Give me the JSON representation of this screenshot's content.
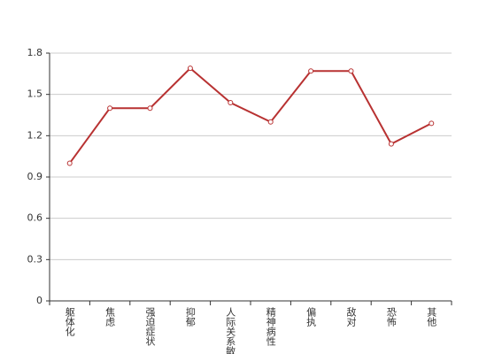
{
  "chart_data": {
    "type": "line",
    "categories": [
      "躯体化",
      "焦虑",
      "强迫症状",
      "抑郁",
      "人际关系敏感",
      "精神病性",
      "偏执",
      "敌对",
      "恐怖",
      "其他"
    ],
    "values": [
      1.0,
      1.4,
      1.4,
      1.69,
      1.44,
      1.3,
      1.67,
      1.67,
      1.14,
      1.29
    ],
    "color": "#b83232",
    "ylim": [
      0,
      1.8
    ],
    "yticks": [
      0,
      0.3,
      0.6,
      0.9,
      1.2,
      1.5,
      1.8
    ],
    "grid": true
  }
}
